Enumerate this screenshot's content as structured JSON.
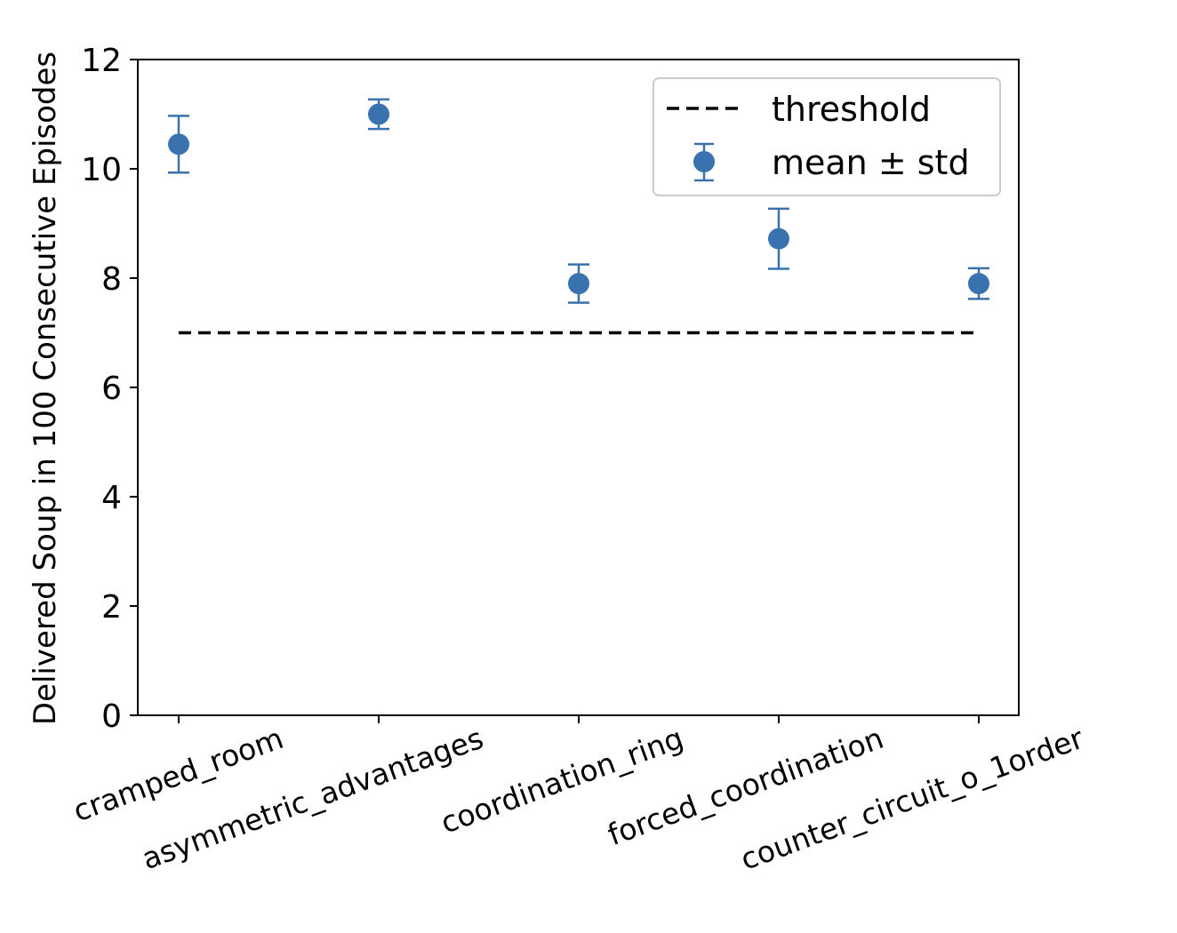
{
  "chart_data": {
    "type": "scatter",
    "categories": [
      "cramped_room",
      "asymmetric_advantages",
      "coordination_ring",
      "forced_coordination",
      "counter_circuit_o_1order"
    ],
    "series": [
      {
        "name": "mean ± std",
        "values": [
          10.45,
          11.0,
          7.9,
          8.72,
          7.9
        ],
        "std": [
          0.52,
          0.27,
          0.35,
          0.55,
          0.28
        ],
        "color": "#3a72b0"
      }
    ],
    "threshold": {
      "name": "threshold",
      "value": 7.0,
      "color": "#000000",
      "style": "dashed"
    },
    "title": "",
    "xlabel": "",
    "ylabel": "Delivered Soup in 100 Consecutive Episodes",
    "ylim": [
      0,
      12
    ],
    "yticks": [
      0,
      2,
      4,
      6,
      8,
      10,
      12
    ],
    "grid": false,
    "legend_position": "top-right"
  }
}
